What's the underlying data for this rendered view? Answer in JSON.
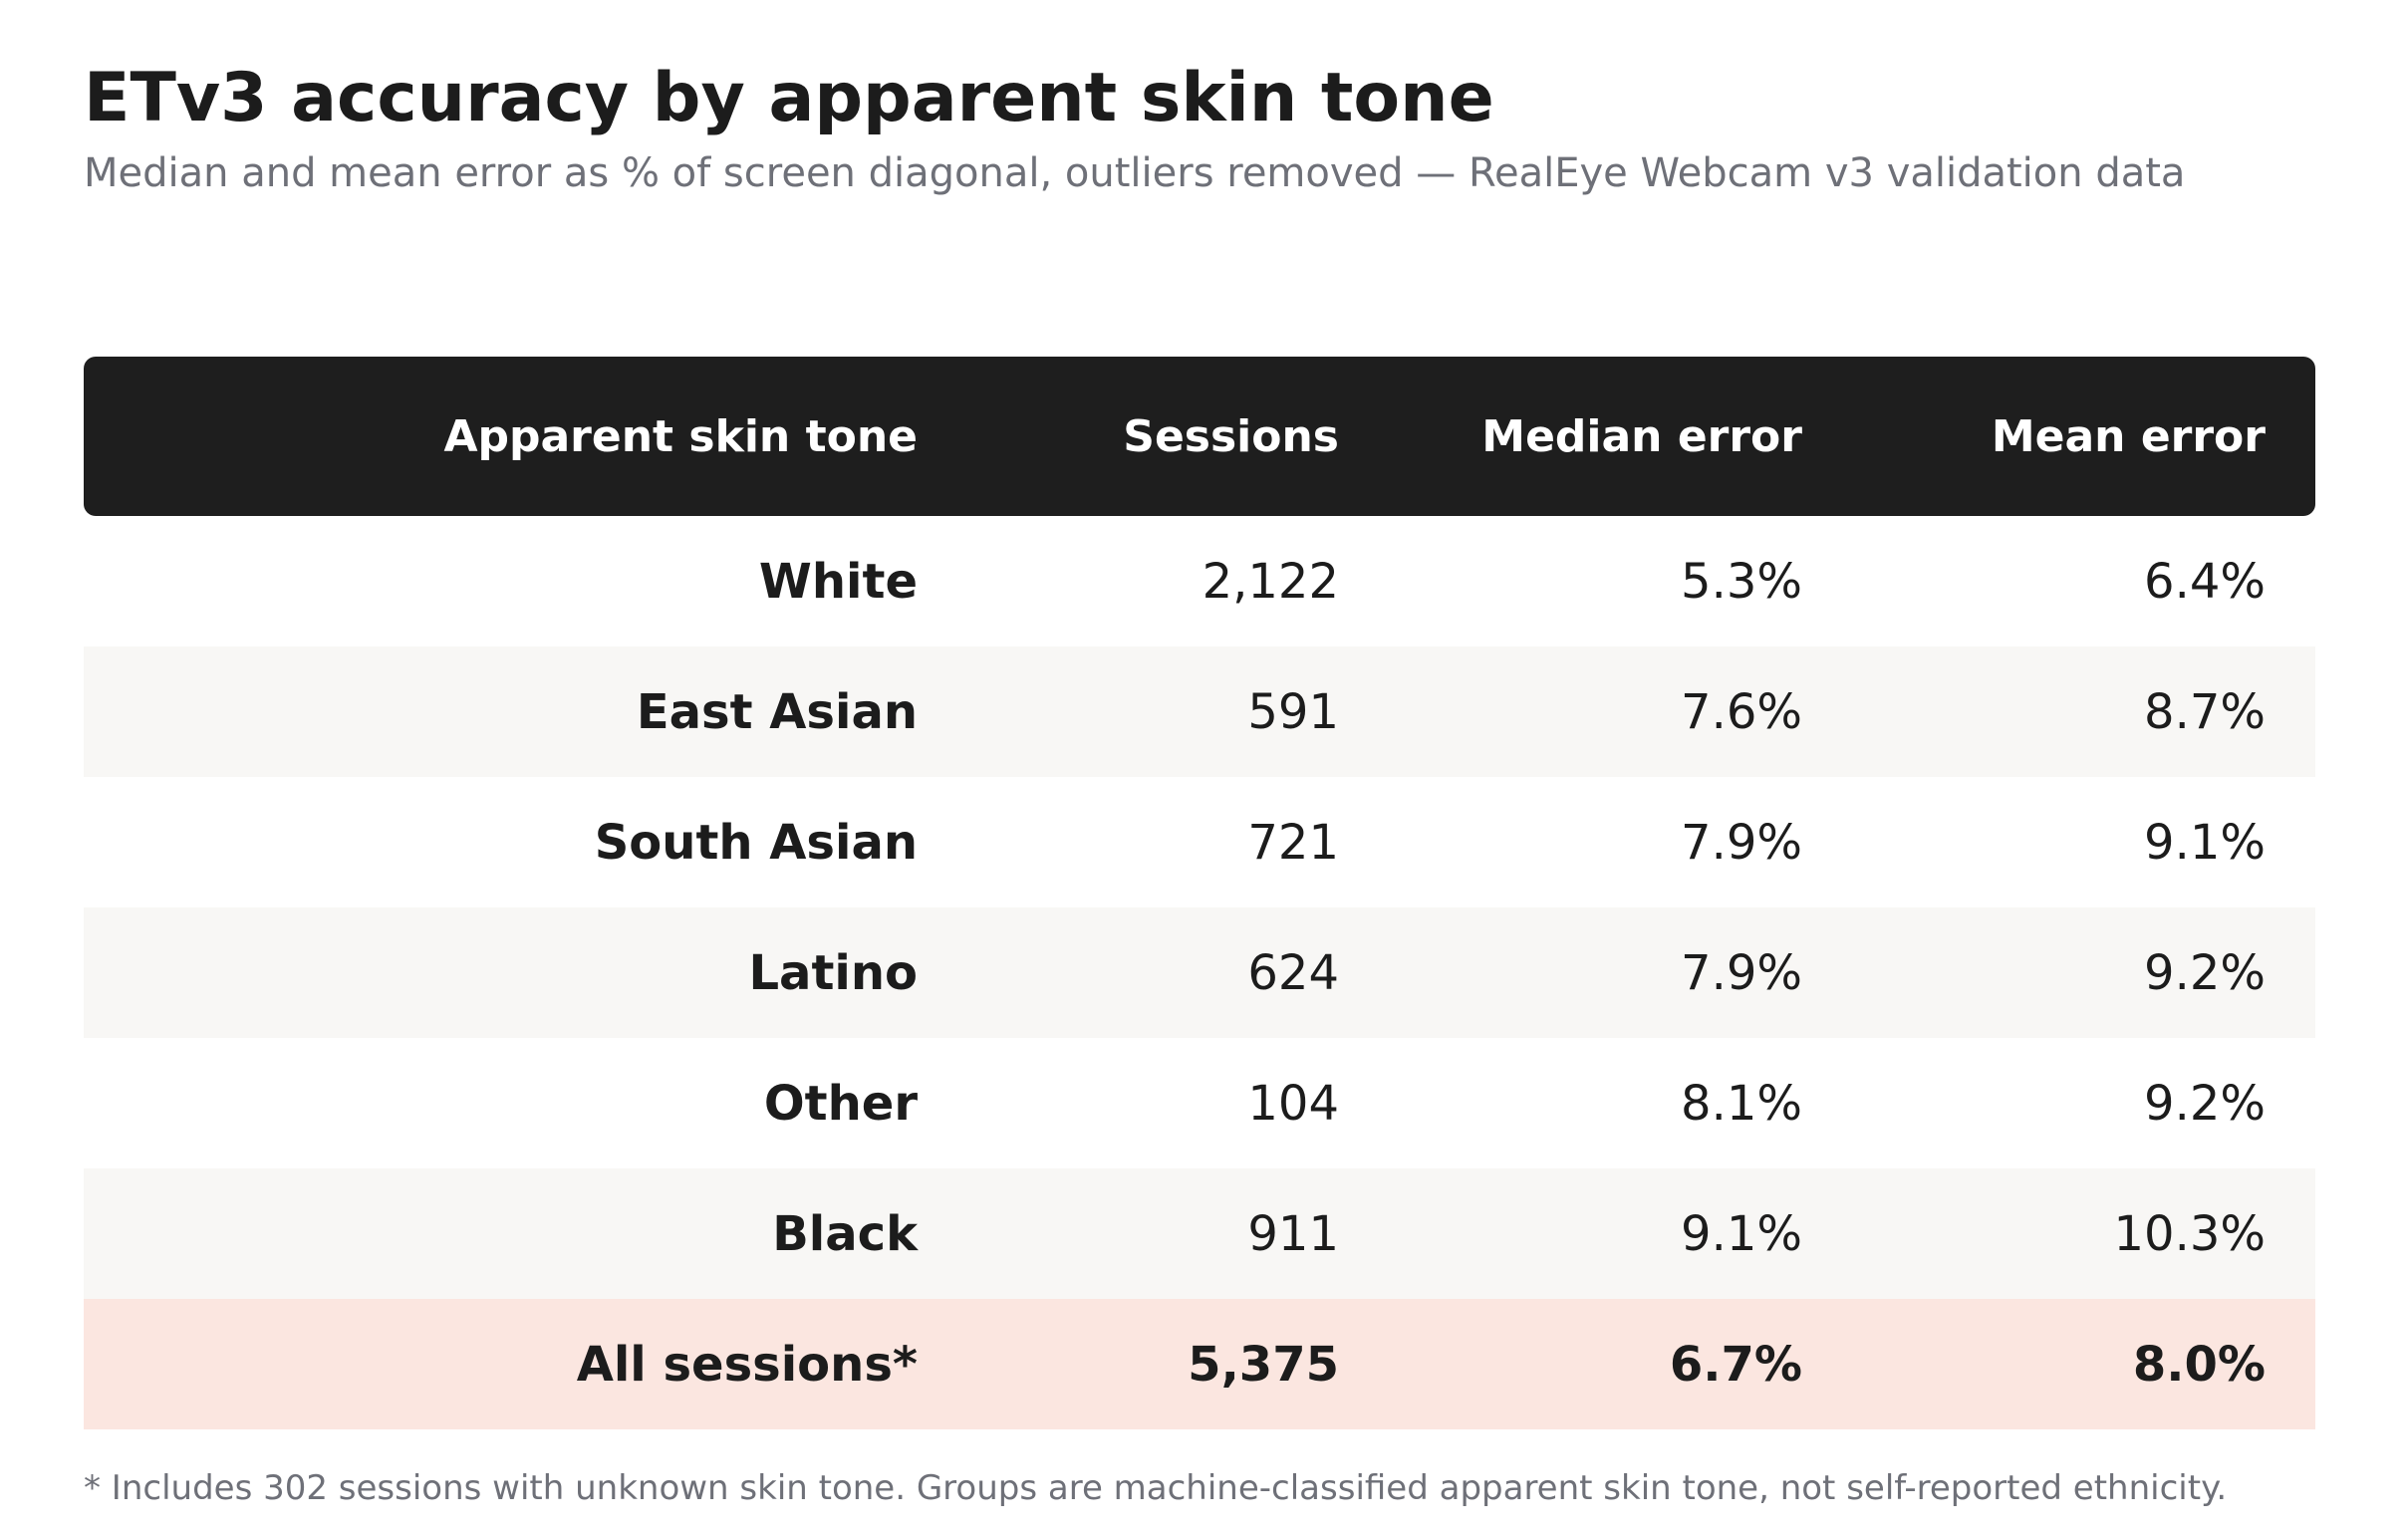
{
  "title": "ETv3 accuracy by apparent skin tone",
  "subtitle": "Median and mean error as % of screen diagonal, outliers removed — RealEye Webcam v3 validation data",
  "footnote": "* Includes 302 sessions with unknown skin tone. Groups are machine-classified apparent skin tone, not self-reported ethnicity.",
  "colors": {
    "header_bg": "#1e1e1e",
    "row_alt_bg": "#f8f7f5",
    "total_row_bg": "#fbe6e0",
    "muted_text": "#6e7078"
  },
  "chart_data": {
    "type": "table",
    "columns": [
      "Apparent skin tone",
      "Sessions",
      "Median error",
      "Mean error"
    ],
    "rows": [
      [
        "White",
        "2,122",
        "5.3%",
        "6.4%"
      ],
      [
        "East Asian",
        "591",
        "7.6%",
        "8.7%"
      ],
      [
        "South Asian",
        "721",
        "7.9%",
        "9.1%"
      ],
      [
        "Latino",
        "624",
        "7.9%",
        "9.2%"
      ],
      [
        "Other",
        "104",
        "8.1%",
        "9.2%"
      ],
      [
        "Black",
        "911",
        "9.1%",
        "10.3%"
      ]
    ],
    "total_row": [
      "All sessions*",
      "5,375",
      "6.7%",
      "8.0%"
    ]
  }
}
